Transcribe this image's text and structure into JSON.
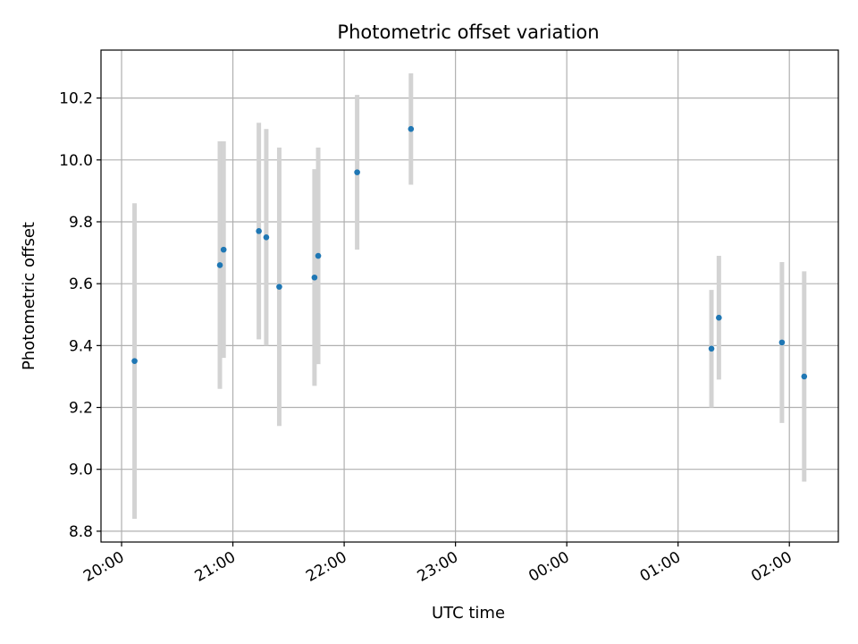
{
  "chart_data": {
    "type": "scatter",
    "title": "Photometric offset variation",
    "xlabel": "UTC time",
    "ylabel": "Photometric offset",
    "x_tick_labels": [
      "20:00",
      "21:00",
      "22:00",
      "23:00",
      "00:00",
      "01:00",
      "02:00"
    ],
    "y_tick_labels": [
      "8.8",
      "9.0",
      "9.2",
      "9.4",
      "9.6",
      "9.8",
      "10.0",
      "10.2"
    ],
    "grid": true,
    "colors": {
      "point": "#1f77b4",
      "errorbar": "#d3d3d3",
      "grid": "#b0b0b0"
    },
    "series": [
      {
        "points": [
          {
            "x": "20:07",
            "y": 9.35,
            "yerr": 0.51
          },
          {
            "x": "20:53",
            "y": 9.66,
            "yerr": 0.4
          },
          {
            "x": "20:55",
            "y": 9.71,
            "yerr": 0.35
          },
          {
            "x": "21:14",
            "y": 9.77,
            "yerr": 0.35
          },
          {
            "x": "21:18",
            "y": 9.75,
            "yerr": 0.35
          },
          {
            "x": "21:25",
            "y": 9.59,
            "yerr": 0.45
          },
          {
            "x": "21:44",
            "y": 9.62,
            "yerr": 0.35
          },
          {
            "x": "21:46",
            "y": 9.69,
            "yerr": 0.35
          },
          {
            "x": "22:07",
            "y": 9.96,
            "yerr": 0.25
          },
          {
            "x": "22:36",
            "y": 10.1,
            "yerr": 0.18
          },
          {
            "x": "01:18",
            "y": 9.39,
            "yerr": 0.19
          },
          {
            "x": "01:22",
            "y": 9.49,
            "yerr": 0.2
          },
          {
            "x": "01:56",
            "y": 9.41,
            "yerr": 0.26
          },
          {
            "x": "02:08",
            "y": 9.3,
            "yerr": 0.34
          }
        ]
      }
    ]
  }
}
